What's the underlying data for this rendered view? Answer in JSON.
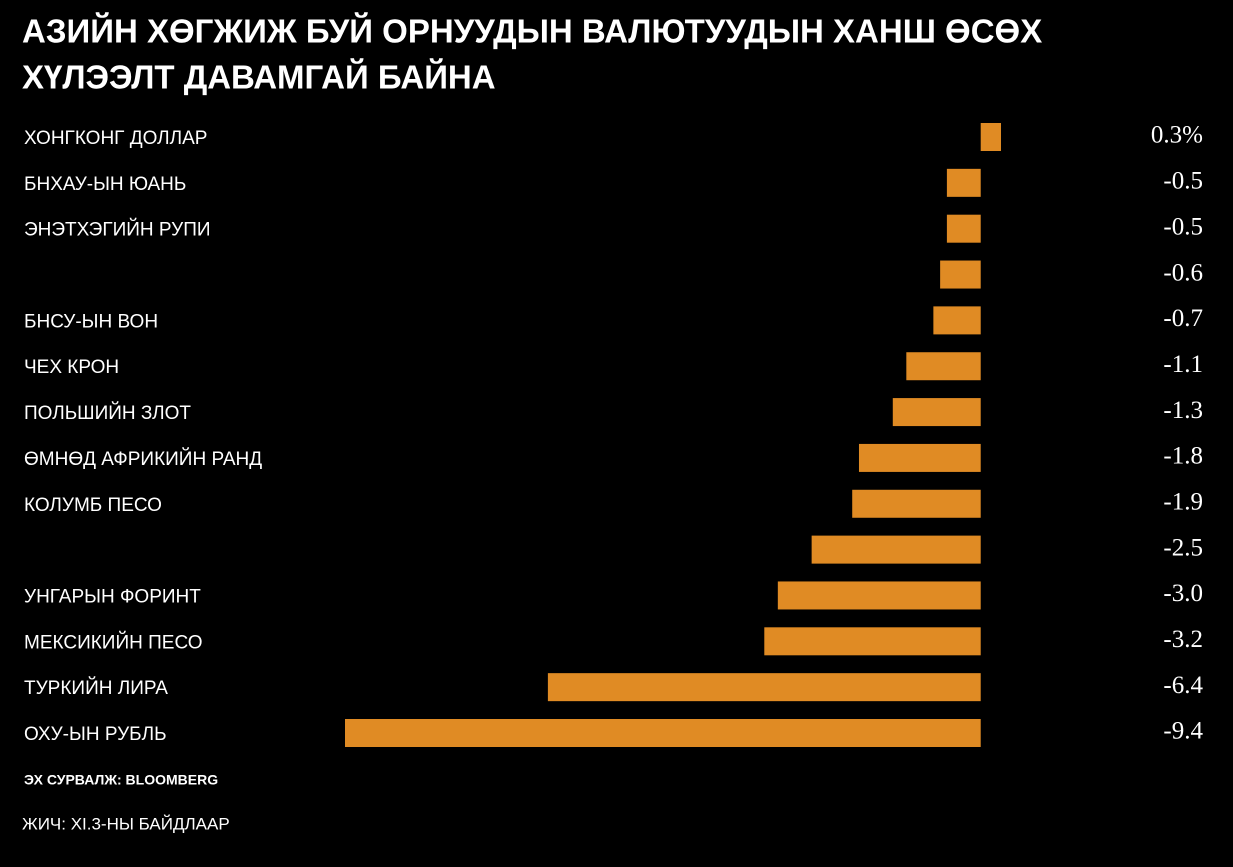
{
  "chart_data": {
    "type": "hbar",
    "title": [
      "АЗИЙН ХӨГЖИЖ БУЙ ОРНУУДЫН ВАЛЮТУУДЫН ХАНШ ӨСӨХ",
      "ХҮЛЭЭЛТ ДАВАМГАЙ БАЙНА"
    ],
    "categories": [
      "ХОНГКОНГ ДОЛЛАР",
      "БНХАУ-ЫН ЮАНЬ",
      "ЭНЭТХЭГИЙН РУПИ",
      null,
      "БНСУ-ЫН ВОН",
      "ЧЕХ КРОН",
      "ПОЛЬШИЙН ЗЛОТ",
      "ӨМНӨД АФРИКИЙН РАНД",
      "КОЛУМБ ПЕСО",
      null,
      "УНГАРЫН ФОРИНТ",
      "МЕКСИКИЙН ПЕСО",
      "ТУРКИЙН ЛИРА",
      "ОХУ-ЫН РУБЛЬ"
    ],
    "values": [
      0.3,
      -0.5,
      -0.5,
      -0.6,
      -0.7,
      -1.1,
      -1.3,
      -1.8,
      -1.9,
      -2.5,
      -3.0,
      -3.2,
      -6.4,
      -9.4
    ],
    "value_labels": [
      "0.3%",
      "-0.5",
      "-0.5",
      "-0.6",
      "-0.7",
      "-1.1",
      "-1.3",
      "-1.8",
      "-1.9",
      "-2.5",
      "-3.0",
      "-3.2",
      "-6.4",
      "-9.4"
    ],
    "color": "#e08b24",
    "source": "ЭХ СУРВАЛЖ: BLOOMBERG",
    "note": "ЖИЧ: XI.3-НЫ БАЙДЛААР"
  }
}
